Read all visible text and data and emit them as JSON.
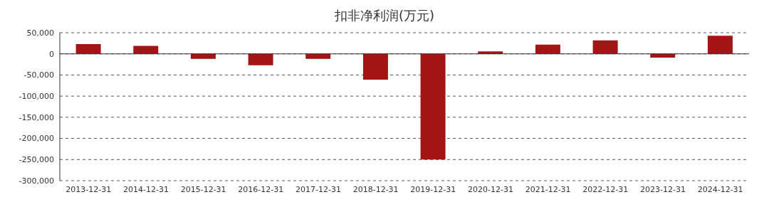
{
  "chart_data": {
    "type": "bar",
    "title": "扣非净利润(万元)",
    "categories": [
      "2013-12-31",
      "2014-12-31",
      "2015-12-31",
      "2016-12-31",
      "2017-12-31",
      "2018-12-31",
      "2019-12-31",
      "2020-12-31",
      "2021-12-31",
      "2022-12-31",
      "2023-12-31",
      "2024-12-31"
    ],
    "values": [
      23000,
      19000,
      -12000,
      -27000,
      -12000,
      -61000,
      -250000,
      6000,
      22000,
      32000,
      -9000,
      43000
    ],
    "color": "#a31515",
    "ylim": [
      -300000,
      50000
    ],
    "yticks": [
      {
        "value": -300000,
        "label": "-300,000"
      },
      {
        "value": -250000,
        "label": "-250,000"
      },
      {
        "value": -200000,
        "label": "-200,000"
      },
      {
        "value": -150000,
        "label": "-150,000"
      },
      {
        "value": -100000,
        "label": "-100,000"
      },
      {
        "value": -50000,
        "label": "-50,000"
      },
      0,
      {
        "value": 50000,
        "label": "50,000"
      }
    ],
    "grid": "y"
  }
}
